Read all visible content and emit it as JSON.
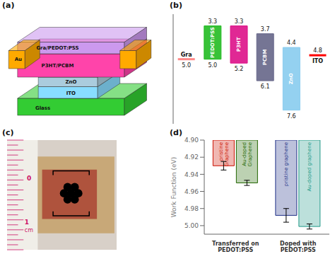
{
  "chart_data": [
    {
      "type": "diagram",
      "title": "(a)",
      "layers": [
        {
          "name": "Glass",
          "color": "#33CC33"
        },
        {
          "name": "ITO",
          "color": "#88DDFF"
        },
        {
          "name": "ZnO",
          "color": "#AACCDD"
        },
        {
          "name": "P3HT/PCBM",
          "color": "#FF44AA"
        },
        {
          "name": "Gra/PEDOT:PSS",
          "color": "#CC99EE"
        },
        {
          "name": "Au",
          "color": "#FFAA00"
        }
      ]
    },
    {
      "type": "floating_bar",
      "title": "(b)",
      "categories": [
        "Gra",
        "PEDOT:PSS",
        "P3HT",
        "PCBM",
        "ZnO",
        "ITO"
      ],
      "values": [
        [
          5.0,
          5.0
        ],
        [
          3.3,
          5.0
        ],
        [
          3.3,
          5.2
        ],
        [
          3.7,
          6.1
        ],
        [
          4.4,
          7.6
        ],
        [
          4.8,
          4.8
        ]
      ],
      "value_labels": [
        [
          null,
          "5.0"
        ],
        [
          "3.3",
          "5.0"
        ],
        [
          "3.3",
          "5.2"
        ],
        [
          "3.7",
          "6.1"
        ],
        [
          "4.4",
          "7.6"
        ],
        [
          "4.8",
          null
        ]
      ],
      "colors": [
        "#FF8888",
        "#22BB22",
        "#DD1188",
        "#666688",
        "#88CCEE",
        "red"
      ],
      "ylim": [
        8.3,
        2.7
      ],
      "tick_labels": false
    },
    {
      "type": "photo",
      "title": "(c)",
      "annotations": [
        "0",
        "1",
        "cm"
      ]
    },
    {
      "type": "bar",
      "title": "(d)",
      "categories": [
        "Transferred on\nPEDOT:PSS",
        "Doped with\nPEDOT:PSS"
      ],
      "series": [
        {
          "values": [
            4.93,
            4.988
          ],
          "errors": [
            0.005,
            0.008
          ],
          "colors": [
            "#CC1100",
            "#223388"
          ],
          "bar_labels": [
            "pristine\nGraphene",
            "pristine graphene"
          ]
        },
        {
          "values": [
            4.95,
            5.001
          ],
          "errors": [
            0.003,
            0.003
          ],
          "colors": [
            "#226600",
            "#229988"
          ],
          "bar_labels": [
            "Au-doped\nGraphene",
            "Au-doped graphene"
          ]
        }
      ],
      "ylabel": "Work Function (eV)",
      "ylim": [
        5.01,
        4.9
      ],
      "yticks": [
        {
          "value": 4.9,
          "label": "4.90"
        },
        {
          "value": 4.92,
          "label": "4.92"
        },
        {
          "value": 4.94,
          "label": "4.94"
        },
        {
          "value": 4.96,
          "label": "4.96"
        },
        {
          "value": 4.98,
          "label": "4.98"
        },
        {
          "value": 5.0,
          "label": "5.00"
        }
      ]
    }
  ]
}
